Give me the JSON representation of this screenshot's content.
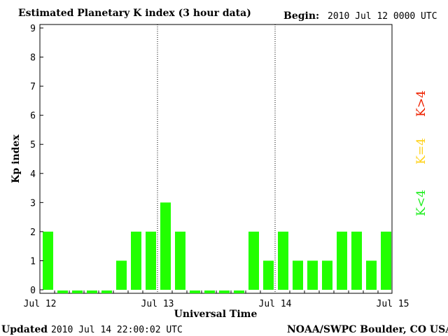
{
  "header": {
    "title": "Estimated Planetary K index (3 hour data)",
    "begin_label": "Begin:",
    "begin_value": "2010 Jul 12 0000 UTC"
  },
  "footer": {
    "updated_label": "Updated",
    "updated_value": "2010 Jul 14 22:00:02 UTC",
    "credit": "NOAA/SWPC Boulder, CO USA"
  },
  "legend": [
    {
      "text": "K<4",
      "color": "#22ee22"
    },
    {
      "text": "K=4",
      "color": "#ffd21a"
    },
    {
      "text": "K>4",
      "color": "#ee2200"
    }
  ],
  "chart_data": {
    "type": "bar",
    "title": "Estimated Planetary K index (3 hour data)",
    "xlabel": "Universal Time",
    "ylabel": "Kp index",
    "ylim": [
      0,
      9
    ],
    "yticks": [
      0,
      1,
      2,
      3,
      4,
      5,
      6,
      7,
      8,
      9
    ],
    "xticks": [
      "Jul 12",
      "Jul 13",
      "Jul 14",
      "Jul 15"
    ],
    "day_dividers": [
      "Jul 13",
      "Jul 14"
    ],
    "bar_color": "#22ff00",
    "interval_hours": 3,
    "values": [
      2,
      0,
      0,
      0,
      0,
      1,
      2,
      2,
      3,
      2,
      0,
      0,
      0,
      0,
      2,
      1,
      2,
      1,
      1,
      1,
      2,
      2,
      1,
      2
    ]
  }
}
